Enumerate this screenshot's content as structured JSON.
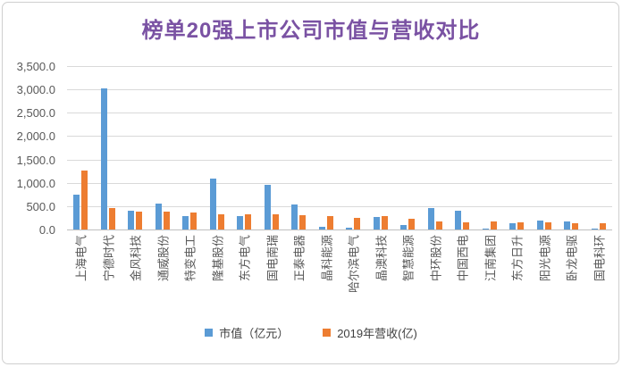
{
  "chart_data": {
    "type": "bar",
    "title": "榜单20强上市公司市值与营收对比",
    "title_color": "#7A52A3",
    "categories": [
      "上海电气",
      "宁德时代",
      "金风科技",
      "通威股份",
      "特变电工",
      "隆基股份",
      "东方电气",
      "国电南瑞",
      "正泰电器",
      "晶科能源",
      "哈尔滨电气",
      "晶澳科技",
      "智慧能源",
      "中环股份",
      "中国西电",
      "江南集团",
      "东方日升",
      "阳光电源",
      "卧龙电驱",
      "国电科环"
    ],
    "series": [
      {
        "name": "市值（亿元）",
        "color": "#5B9BD5",
        "values": [
          740,
          3030,
          405,
          550,
          280,
          1095,
          295,
          955,
          540,
          60,
          40,
          260,
          100,
          465,
          400,
          25,
          130,
          200,
          165,
          15
        ]
      },
      {
        "name": "2019年营收(亿)",
        "color": "#ED7D31",
        "values": [
          1270,
          455,
          380,
          375,
          365,
          325,
          330,
          322,
          300,
          295,
          245,
          290,
          220,
          170,
          155,
          180,
          155,
          145,
          140,
          140
        ]
      }
    ],
    "xlabel": "",
    "ylabel": "",
    "ylim": [
      0,
      3500
    ],
    "ytick_step": 500,
    "ytick_labels": [
      "0.0",
      "500.0",
      "1,000.0",
      "1,500.0",
      "2,000.0",
      "2,500.0",
      "3,000.0",
      "3,500.0"
    ],
    "grid": true,
    "legend_position": "bottom",
    "axis_text_color": "#595959",
    "gridline_color": "#d9d9d9"
  }
}
